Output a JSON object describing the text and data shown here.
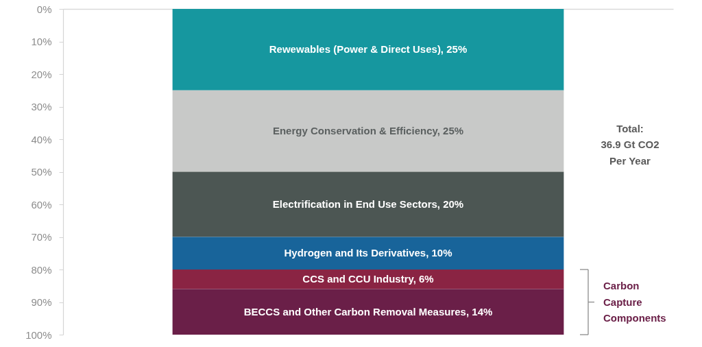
{
  "chart_data": {
    "type": "bar",
    "stacked": true,
    "categories": [
      null
    ],
    "series": [
      {
        "color": "#16979f",
        "values": [
          25
        ],
        "value_labels": [
          "Rewewables (Power & Direct Uses), 25%"
        ]
      },
      {
        "color": "#c8c9c8",
        "values": [
          25
        ],
        "value_labels": [
          "Energy Conservation & Efficiency, 25%"
        ]
      },
      {
        "color": "#4c5653",
        "values": [
          20
        ],
        "value_labels": [
          "Electrification in End Use Sectors, 20%"
        ]
      },
      {
        "color": "#18649a",
        "values": [
          10
        ],
        "value_labels": [
          "Hydrogen and Its Derivatives, 10%"
        ]
      },
      {
        "color": "#8a2443",
        "values": [
          6
        ],
        "value_labels": [
          "CCS and CCU Industry, 6%"
        ]
      },
      {
        "color": "#6a1f48",
        "values": [
          14
        ],
        "value_labels": [
          "BECCS and Other Carbon Removal Measures, 14%"
        ]
      }
    ],
    "ylim": [
      100,
      0
    ],
    "yticks": [
      {
        "value": 0,
        "label": "0%"
      },
      {
        "value": 10,
        "label": "10%"
      },
      {
        "value": 20,
        "label": "20%"
      },
      {
        "value": 30,
        "label": "30%"
      },
      {
        "value": 40,
        "label": "40%"
      },
      {
        "value": 50,
        "label": "50%"
      },
      {
        "value": 60,
        "label": "60%"
      },
      {
        "value": 70,
        "label": "70%"
      },
      {
        "value": 80,
        "label": "80%"
      },
      {
        "value": 90,
        "label": "90%"
      },
      {
        "value": 100,
        "label": "100%"
      }
    ],
    "tick_labels": "y",
    "annotations": [
      "Total:\n36.9 Gt CO2\nPer Year",
      "Carbon\nCapture\nComponents"
    ]
  }
}
